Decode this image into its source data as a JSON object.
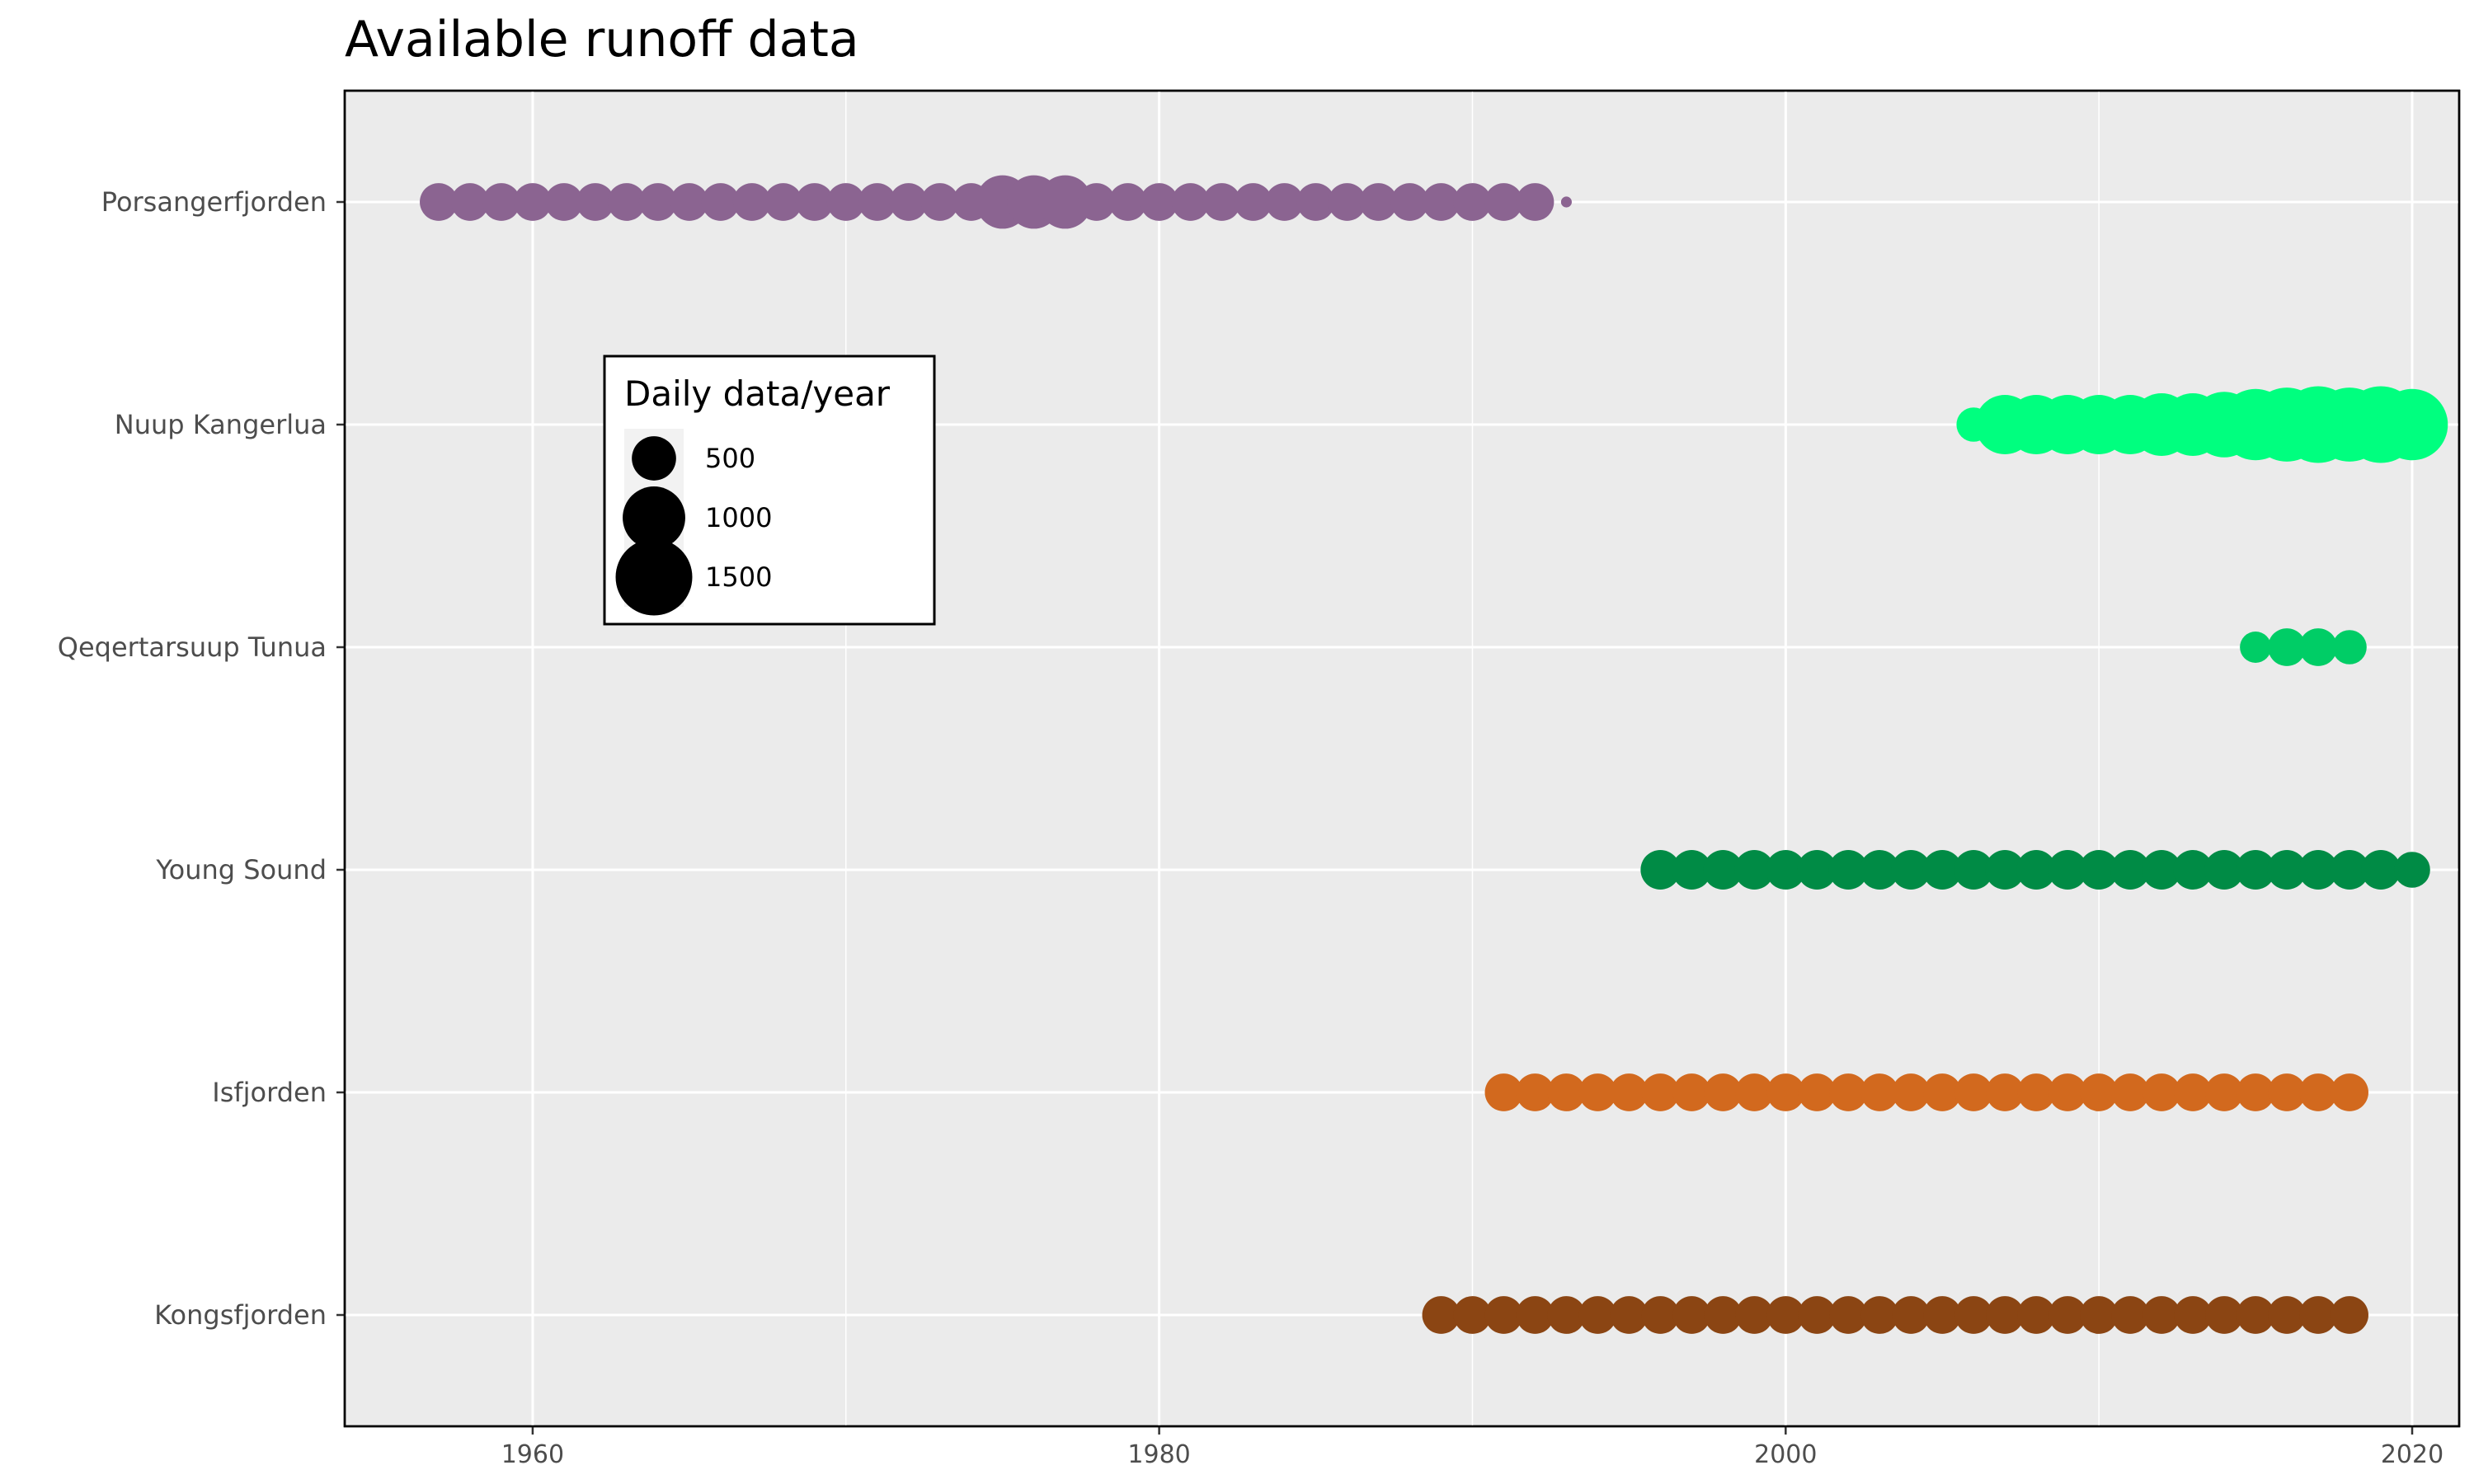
{
  "chart_data": {
    "type": "scatter",
    "title": "Available runoff data",
    "xlabel": "",
    "ylabel": "",
    "xlim": [
      1954,
      2021.5
    ],
    "xticks": [
      1960,
      1980,
      2000,
      2020
    ],
    "x_minor_ticks": [
      1970,
      1990,
      2010
    ],
    "categories": [
      "Porsangerfjorden",
      "Nuup Kangerlua",
      "Qeqertarsuup Tunua",
      "Young Sound",
      "Isfjorden",
      "Kongsfjorden"
    ],
    "grid": true,
    "size_legend": {
      "title": "Daily data/year",
      "placement": "inside-top-left",
      "entries": [
        {
          "label": "500",
          "value": 500
        },
        {
          "label": "1000",
          "value": 1000
        },
        {
          "label": "1500",
          "value": 1500
        }
      ]
    },
    "series": [
      {
        "category": "Porsangerfjorden",
        "color": "#8B6491",
        "points": [
          {
            "x": 1957,
            "size": 365
          },
          {
            "x": 1958,
            "size": 365
          },
          {
            "x": 1959,
            "size": 365
          },
          {
            "x": 1960,
            "size": 365
          },
          {
            "x": 1961,
            "size": 365
          },
          {
            "x": 1962,
            "size": 365
          },
          {
            "x": 1963,
            "size": 365
          },
          {
            "x": 1964,
            "size": 365
          },
          {
            "x": 1965,
            "size": 365
          },
          {
            "x": 1966,
            "size": 365
          },
          {
            "x": 1967,
            "size": 365
          },
          {
            "x": 1968,
            "size": 365
          },
          {
            "x": 1969,
            "size": 365
          },
          {
            "x": 1970,
            "size": 365
          },
          {
            "x": 1971,
            "size": 365
          },
          {
            "x": 1972,
            "size": 365
          },
          {
            "x": 1973,
            "size": 365
          },
          {
            "x": 1974,
            "size": 365
          },
          {
            "x": 1975,
            "size": 730
          },
          {
            "x": 1976,
            "size": 730
          },
          {
            "x": 1977,
            "size": 730
          },
          {
            "x": 1978,
            "size": 365
          },
          {
            "x": 1979,
            "size": 365
          },
          {
            "x": 1980,
            "size": 365
          },
          {
            "x": 1981,
            "size": 365
          },
          {
            "x": 1982,
            "size": 365
          },
          {
            "x": 1983,
            "size": 365
          },
          {
            "x": 1984,
            "size": 365
          },
          {
            "x": 1985,
            "size": 365
          },
          {
            "x": 1986,
            "size": 365
          },
          {
            "x": 1987,
            "size": 365
          },
          {
            "x": 1988,
            "size": 365
          },
          {
            "x": 1989,
            "size": 365
          },
          {
            "x": 1990,
            "size": 365
          },
          {
            "x": 1991,
            "size": 365
          },
          {
            "x": 1992,
            "size": 365
          },
          {
            "x": 1993,
            "size": 30
          }
        ]
      },
      {
        "category": "Nuup Kangerlua",
        "color": "#00FF7F",
        "points": [
          {
            "x": 2006,
            "size": 300
          },
          {
            "x": 2007,
            "size": 900
          },
          {
            "x": 2008,
            "size": 900
          },
          {
            "x": 2009,
            "size": 900
          },
          {
            "x": 2010,
            "size": 900
          },
          {
            "x": 2011,
            "size": 900
          },
          {
            "x": 2012,
            "size": 1000
          },
          {
            "x": 2013,
            "size": 1000
          },
          {
            "x": 2014,
            "size": 1100
          },
          {
            "x": 2015,
            "size": 1300
          },
          {
            "x": 2016,
            "size": 1400
          },
          {
            "x": 2017,
            "size": 1500
          },
          {
            "x": 2018,
            "size": 1400
          },
          {
            "x": 2019,
            "size": 1500
          },
          {
            "x": 2020,
            "size": 1300
          }
        ]
      },
      {
        "category": "Qeqertarsuup Tunua",
        "color": "#00CD66",
        "points": [
          {
            "x": 2015,
            "size": 250
          },
          {
            "x": 2016,
            "size": 365
          },
          {
            "x": 2017,
            "size": 365
          },
          {
            "x": 2018,
            "size": 300
          }
        ]
      },
      {
        "category": "Young Sound",
        "color": "#008B45",
        "points": [
          {
            "x": 1996,
            "size": 400
          },
          {
            "x": 1997,
            "size": 400
          },
          {
            "x": 1998,
            "size": 400
          },
          {
            "x": 1999,
            "size": 400
          },
          {
            "x": 2000,
            "size": 400
          },
          {
            "x": 2001,
            "size": 400
          },
          {
            "x": 2002,
            "size": 400
          },
          {
            "x": 2003,
            "size": 400
          },
          {
            "x": 2004,
            "size": 400
          },
          {
            "x": 2005,
            "size": 400
          },
          {
            "x": 2006,
            "size": 400
          },
          {
            "x": 2007,
            "size": 400
          },
          {
            "x": 2008,
            "size": 400
          },
          {
            "x": 2009,
            "size": 400
          },
          {
            "x": 2010,
            "size": 400
          },
          {
            "x": 2011,
            "size": 400
          },
          {
            "x": 2012,
            "size": 400
          },
          {
            "x": 2013,
            "size": 400
          },
          {
            "x": 2014,
            "size": 400
          },
          {
            "x": 2015,
            "size": 400
          },
          {
            "x": 2016,
            "size": 400
          },
          {
            "x": 2017,
            "size": 400
          },
          {
            "x": 2018,
            "size": 400
          },
          {
            "x": 2019,
            "size": 400
          },
          {
            "x": 2020,
            "size": 330
          }
        ]
      },
      {
        "category": "Isfjorden",
        "color": "#D2691E",
        "points": [
          {
            "x": 1991,
            "size": 365
          },
          {
            "x": 1992,
            "size": 365
          },
          {
            "x": 1993,
            "size": 365
          },
          {
            "x": 1994,
            "size": 365
          },
          {
            "x": 1995,
            "size": 365
          },
          {
            "x": 1996,
            "size": 365
          },
          {
            "x": 1997,
            "size": 365
          },
          {
            "x": 1998,
            "size": 365
          },
          {
            "x": 1999,
            "size": 365
          },
          {
            "x": 2000,
            "size": 365
          },
          {
            "x": 2001,
            "size": 365
          },
          {
            "x": 2002,
            "size": 365
          },
          {
            "x": 2003,
            "size": 365
          },
          {
            "x": 2004,
            "size": 365
          },
          {
            "x": 2005,
            "size": 365
          },
          {
            "x": 2006,
            "size": 365
          },
          {
            "x": 2007,
            "size": 365
          },
          {
            "x": 2008,
            "size": 365
          },
          {
            "x": 2009,
            "size": 365
          },
          {
            "x": 2010,
            "size": 365
          },
          {
            "x": 2011,
            "size": 365
          },
          {
            "x": 2012,
            "size": 365
          },
          {
            "x": 2013,
            "size": 365
          },
          {
            "x": 2014,
            "size": 365
          },
          {
            "x": 2015,
            "size": 365
          },
          {
            "x": 2016,
            "size": 365
          },
          {
            "x": 2017,
            "size": 365
          },
          {
            "x": 2018,
            "size": 365
          }
        ]
      },
      {
        "category": "Kongsfjorden",
        "color": "#8B4513",
        "points": [
          {
            "x": 1989,
            "size": 365
          },
          {
            "x": 1990,
            "size": 365
          },
          {
            "x": 1991,
            "size": 365
          },
          {
            "x": 1992,
            "size": 365
          },
          {
            "x": 1993,
            "size": 365
          },
          {
            "x": 1994,
            "size": 365
          },
          {
            "x": 1995,
            "size": 365
          },
          {
            "x": 1996,
            "size": 365
          },
          {
            "x": 1997,
            "size": 365
          },
          {
            "x": 1998,
            "size": 365
          },
          {
            "x": 1999,
            "size": 365
          },
          {
            "x": 2000,
            "size": 365
          },
          {
            "x": 2001,
            "size": 365
          },
          {
            "x": 2002,
            "size": 365
          },
          {
            "x": 2003,
            "size": 365
          },
          {
            "x": 2004,
            "size": 365
          },
          {
            "x": 2005,
            "size": 365
          },
          {
            "x": 2006,
            "size": 365
          },
          {
            "x": 2007,
            "size": 365
          },
          {
            "x": 2008,
            "size": 365
          },
          {
            "x": 2009,
            "size": 365
          },
          {
            "x": 2010,
            "size": 365
          },
          {
            "x": 2011,
            "size": 365
          },
          {
            "x": 2012,
            "size": 365
          },
          {
            "x": 2013,
            "size": 365
          },
          {
            "x": 2014,
            "size": 365
          },
          {
            "x": 2015,
            "size": 365
          },
          {
            "x": 2016,
            "size": 365
          },
          {
            "x": 2017,
            "size": 365
          },
          {
            "x": 2018,
            "size": 365
          }
        ]
      }
    ]
  }
}
